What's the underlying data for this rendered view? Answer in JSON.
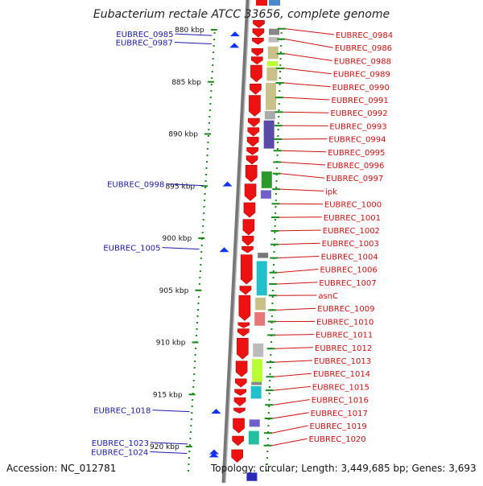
{
  "title": "Eubacterium rectale ATCC 33656, complete genome",
  "footer": {
    "accession": "Accession: NC_012781",
    "topology": "Topology: circular; Length: 3,449,685 bp; Genes: 3,693"
  },
  "colors": {
    "backbone": "#888888",
    "gene_arrow": "#ee1111",
    "left_label": "#1a1aaa",
    "right_label": "#cc1111",
    "tick": "#1a8a1a",
    "strand_marker": "#1133ee"
  },
  "ticks": [
    {
      "kbp": 880,
      "label": "880 kbp"
    },
    {
      "kbp": 885,
      "label": "885 kbp"
    },
    {
      "kbp": 890,
      "label": "890 kbp"
    },
    {
      "kbp": 895,
      "label": "895 kbp"
    },
    {
      "kbp": 900,
      "label": "900 kbp"
    },
    {
      "kbp": 905,
      "label": "905 kbp"
    },
    {
      "kbp": 910,
      "label": "910 kbp"
    },
    {
      "kbp": 915,
      "label": "915 kbp"
    },
    {
      "kbp": 920,
      "label": "920 kbp"
    }
  ],
  "left_genes": [
    {
      "name": "EUBREC_0985",
      "kbp": 880.4
    },
    {
      "name": "EUBREC_0987",
      "kbp": 881.2
    },
    {
      "name": "EUBREC_0998",
      "kbp": 894.8
    },
    {
      "name": "EUBREC_1005",
      "kbp": 900.9
    },
    {
      "name": "EUBREC_1018",
      "kbp": 916.5
    },
    {
      "name": "EUBREC_1023",
      "kbp": 919.6
    },
    {
      "name": "EUBREC_1024",
      "kbp": 920.5
    }
  ],
  "right_genes": [
    {
      "name": "EUBREC_0984",
      "kbp": 879.9
    },
    {
      "name": "EUBREC_0986",
      "kbp": 880.9
    },
    {
      "name": "EUBREC_0988",
      "kbp": 882.3
    },
    {
      "name": "EUBREC_0989",
      "kbp": 883.7
    },
    {
      "name": "EUBREC_0990",
      "kbp": 885.1
    },
    {
      "name": "EUBREC_0991",
      "kbp": 886.5
    },
    {
      "name": "EUBREC_0992",
      "kbp": 887.9
    },
    {
      "name": "EUBREC_0993",
      "kbp": 889.2
    },
    {
      "name": "EUBREC_0994",
      "kbp": 890.5
    },
    {
      "name": "EUBREC_0995",
      "kbp": 891.6
    },
    {
      "name": "EUBREC_0996",
      "kbp": 892.7
    },
    {
      "name": "EUBREC_0997",
      "kbp": 893.8
    },
    {
      "name": "ipk",
      "kbp": 895.3
    },
    {
      "name": "EUBREC_1000",
      "kbp": 896.7
    },
    {
      "name": "EUBREC_1001",
      "kbp": 898.0
    },
    {
      "name": "EUBREC_1002",
      "kbp": 899.3
    },
    {
      "name": "EUBREC_1003",
      "kbp": 900.6
    },
    {
      "name": "EUBREC_1004",
      "kbp": 901.9
    },
    {
      "name": "EUBREC_1006",
      "kbp": 903.3
    },
    {
      "name": "EUBREC_1007",
      "kbp": 904.4
    },
    {
      "name": "asnC",
      "kbp": 905.5
    },
    {
      "name": "EUBREC_1009",
      "kbp": 906.9
    },
    {
      "name": "EUBREC_1010",
      "kbp": 908.0
    },
    {
      "name": "EUBREC_1011",
      "kbp": 909.3
    },
    {
      "name": "EUBREC_1012",
      "kbp": 910.6
    },
    {
      "name": "EUBREC_1013",
      "kbp": 911.9
    },
    {
      "name": "EUBREC_1014",
      "kbp": 913.3
    },
    {
      "name": "EUBREC_1015",
      "kbp": 914.6
    },
    {
      "name": "EUBREC_1016",
      "kbp": 916.0
    },
    {
      "name": "EUBREC_1017",
      "kbp": 917.3
    },
    {
      "name": "EUBREC_1019",
      "kbp": 918.7
    },
    {
      "name": "EUBREC_1020",
      "kbp": 919.9
    }
  ],
  "red_genes": [
    {
      "kbp": 879.1,
      "len": 0.7
    },
    {
      "kbp": 879.9,
      "len": 0.8
    },
    {
      "kbp": 880.8,
      "len": 0.6
    },
    {
      "kbp": 881.8,
      "len": 0.7
    },
    {
      "kbp": 882.6,
      "len": 0.7
    },
    {
      "kbp": 883.4,
      "len": 1.6
    },
    {
      "kbp": 885.2,
      "len": 1.0
    },
    {
      "kbp": 886.3,
      "len": 2.0
    },
    {
      "kbp": 888.5,
      "len": 0.8
    },
    {
      "kbp": 889.4,
      "len": 0.8
    },
    {
      "kbp": 890.3,
      "len": 0.9
    },
    {
      "kbp": 891.3,
      "len": 0.7
    },
    {
      "kbp": 892.1,
      "len": 0.8
    },
    {
      "kbp": 893.0,
      "len": 1.6
    },
    {
      "kbp": 894.8,
      "len": 1.6
    },
    {
      "kbp": 896.6,
      "len": 1.4
    },
    {
      "kbp": 898.2,
      "len": 1.5
    },
    {
      "kbp": 899.8,
      "len": 0.9
    },
    {
      "kbp": 900.8,
      "len": 0.6
    },
    {
      "kbp": 901.6,
      "len": 2.8
    },
    {
      "kbp": 904.6,
      "len": 0.8
    },
    {
      "kbp": 905.5,
      "len": 2.4
    },
    {
      "kbp": 908.1,
      "len": 0.5
    },
    {
      "kbp": 908.7,
      "len": 0.7
    },
    {
      "kbp": 909.6,
      "len": 2.0
    },
    {
      "kbp": 911.8,
      "len": 1.5
    },
    {
      "kbp": 913.5,
      "len": 0.8
    },
    {
      "kbp": 914.5,
      "len": 0.6
    },
    {
      "kbp": 915.3,
      "len": 0.8
    },
    {
      "kbp": 916.3,
      "len": 0.5
    },
    {
      "kbp": 917.3,
      "len": 1.4
    },
    {
      "kbp": 919.0,
      "len": 0.9
    },
    {
      "kbp": 920.3,
      "len": 1.2
    }
  ],
  "domain_blocks": [
    {
      "kbp": 879.9,
      "len": 0.6,
      "color": "#888888"
    },
    {
      "kbp": 880.7,
      "len": 0.5,
      "color": "#bbbbbb"
    },
    {
      "kbp": 881.6,
      "len": 1.2,
      "color": "#c9c08a"
    },
    {
      "kbp": 883.0,
      "len": 0.5,
      "color": "#b9ff33"
    },
    {
      "kbp": 883.6,
      "len": 1.3,
      "color": "#c9c08a"
    },
    {
      "kbp": 885.1,
      "len": 2.6,
      "color": "#c9c08a"
    },
    {
      "kbp": 887.8,
      "len": 0.8,
      "color": "#aaaaaa"
    },
    {
      "kbp": 888.7,
      "len": 2.7,
      "color": "#5a4aa8"
    },
    {
      "kbp": 893.6,
      "len": 1.6,
      "color": "#2a9a2a"
    },
    {
      "kbp": 895.4,
      "len": 0.8,
      "color": "#7060c8"
    },
    {
      "kbp": 901.4,
      "len": 0.5,
      "color": "#777777"
    },
    {
      "kbp": 902.2,
      "len": 3.3,
      "color": "#22c0c8"
    },
    {
      "kbp": 905.7,
      "len": 1.2,
      "color": "#c9c08a"
    },
    {
      "kbp": 907.1,
      "len": 1.3,
      "color": "#e87878"
    },
    {
      "kbp": 910.1,
      "len": 1.3,
      "color": "#bbbbbb"
    },
    {
      "kbp": 911.6,
      "len": 2.2,
      "color": "#b9ff33"
    },
    {
      "kbp": 913.8,
      "len": 0.3,
      "color": "#888888"
    },
    {
      "kbp": 914.2,
      "len": 1.2,
      "color": "#22c0c8"
    },
    {
      "kbp": 917.4,
      "len": 0.7,
      "color": "#7060c8"
    },
    {
      "kbp": 918.5,
      "len": 1.3,
      "color": "#22c0a0"
    },
    {
      "kbp": 922.5,
      "len": 0.8,
      "color": "#2a2ab8"
    }
  ],
  "blue_markers": [
    880.4,
    881.5,
    894.8,
    901.1,
    916.6,
    920.5,
    920.8
  ]
}
